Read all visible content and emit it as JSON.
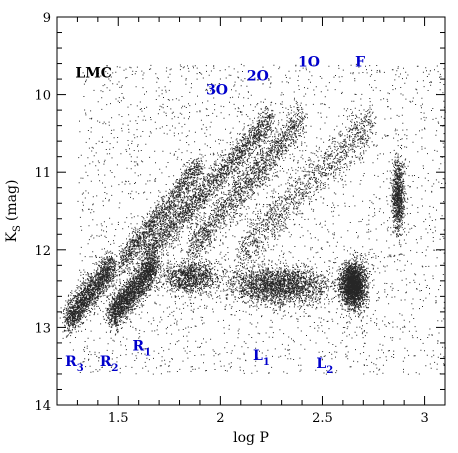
{
  "chart_data": {
    "type": "scatter",
    "title": "",
    "xlabel": "log P",
    "ylabel_main": "K",
    "ylabel_sub": "S",
    "ylabel_unit": "(mag)",
    "xlim": [
      1.2,
      3.1
    ],
    "ylim": [
      9,
      14
    ],
    "y_inverted": true,
    "grid": false,
    "x_ticks": [
      1.5,
      2,
      2.5,
      3
    ],
    "x_tick_labels": [
      "1.5",
      "2",
      "2.5",
      "3"
    ],
    "y_ticks": [
      9,
      10,
      11,
      12,
      13,
      14
    ],
    "y_tick_labels": [
      "9",
      "10",
      "11",
      "12",
      "13",
      "14"
    ],
    "point_color": "#000000",
    "annotation_color": "#0000cc",
    "annotations": [
      {
        "id": "lmc",
        "main": "LMC",
        "sub": "",
        "x": 1.29,
        "y": 9.78,
        "color": "#000000"
      },
      {
        "id": "3o",
        "main": "3O",
        "sub": "",
        "x": 1.93,
        "y": 10.0,
        "color": "#0000cc"
      },
      {
        "id": "2o",
        "main": "2O",
        "sub": "",
        "x": 2.13,
        "y": 9.82,
        "color": "#0000cc"
      },
      {
        "id": "1o",
        "main": "1O",
        "sub": "",
        "x": 2.38,
        "y": 9.64,
        "color": "#0000cc"
      },
      {
        "id": "f",
        "main": "F",
        "sub": "",
        "x": 2.66,
        "y": 9.64,
        "color": "#0000cc"
      },
      {
        "id": "r1",
        "main": "R",
        "sub": "1",
        "x": 1.57,
        "y": 13.3,
        "color": "#0000cc"
      },
      {
        "id": "r2",
        "main": "R",
        "sub": "2",
        "x": 1.41,
        "y": 13.5,
        "color": "#0000cc"
      },
      {
        "id": "r3",
        "main": "R",
        "sub": "3",
        "x": 1.24,
        "y": 13.5,
        "color": "#0000cc"
      },
      {
        "id": "l1",
        "main": "L",
        "sub": "1",
        "x": 2.16,
        "y": 13.42,
        "color": "#0000cc"
      },
      {
        "id": "l2",
        "main": "L",
        "sub": "2",
        "x": 2.47,
        "y": 13.52,
        "color": "#0000cc"
      }
    ],
    "density_features": [
      {
        "name": "R3",
        "shape": "line",
        "from": [
          1.25,
          12.9
        ],
        "to": [
          1.47,
          12.2
        ],
        "width_mag": 0.22,
        "count": 1900
      },
      {
        "name": "R2",
        "shape": "line",
        "from": [
          1.46,
          12.85
        ],
        "to": [
          1.68,
          12.2
        ],
        "width_mag": 0.22,
        "count": 2200
      },
      {
        "name": "3O",
        "shape": "line",
        "from": [
          1.5,
          12.2
        ],
        "to": [
          1.9,
          10.9
        ],
        "width_mag": 0.18,
        "count": 1400
      },
      {
        "name": "2O",
        "shape": "line",
        "from": [
          1.62,
          12.1
        ],
        "to": [
          2.25,
          10.3
        ],
        "width_mag": 0.2,
        "count": 2200
      },
      {
        "name": "1O",
        "shape": "line",
        "from": [
          1.85,
          12.0
        ],
        "to": [
          2.4,
          10.3
        ],
        "width_mag": 0.25,
        "count": 1700
      },
      {
        "name": "F",
        "shape": "line",
        "from": [
          2.1,
          12.0
        ],
        "to": [
          2.75,
          10.3
        ],
        "width_mag": 0.3,
        "count": 1300
      },
      {
        "name": "L1",
        "shape": "blob",
        "center": [
          2.28,
          12.45
        ],
        "spread": [
          0.24,
          0.25
        ],
        "count": 2400
      },
      {
        "name": "L2",
        "shape": "blob",
        "center": [
          2.65,
          12.45
        ],
        "spread": [
          0.06,
          0.28
        ],
        "count": 2600
      },
      {
        "name": "L1-extension",
        "shape": "blob",
        "center": [
          1.85,
          12.35
        ],
        "spread": [
          0.14,
          0.22
        ],
        "count": 1100
      },
      {
        "name": "long-period-strip",
        "shape": "blob",
        "center": [
          2.87,
          11.3
        ],
        "spread": [
          0.03,
          0.45
        ],
        "count": 900
      },
      {
        "name": "background",
        "shape": "uniform",
        "xrange": [
          1.3,
          3.1
        ],
        "yrange": [
          9.6,
          13.6
        ],
        "count": 2800
      }
    ]
  }
}
